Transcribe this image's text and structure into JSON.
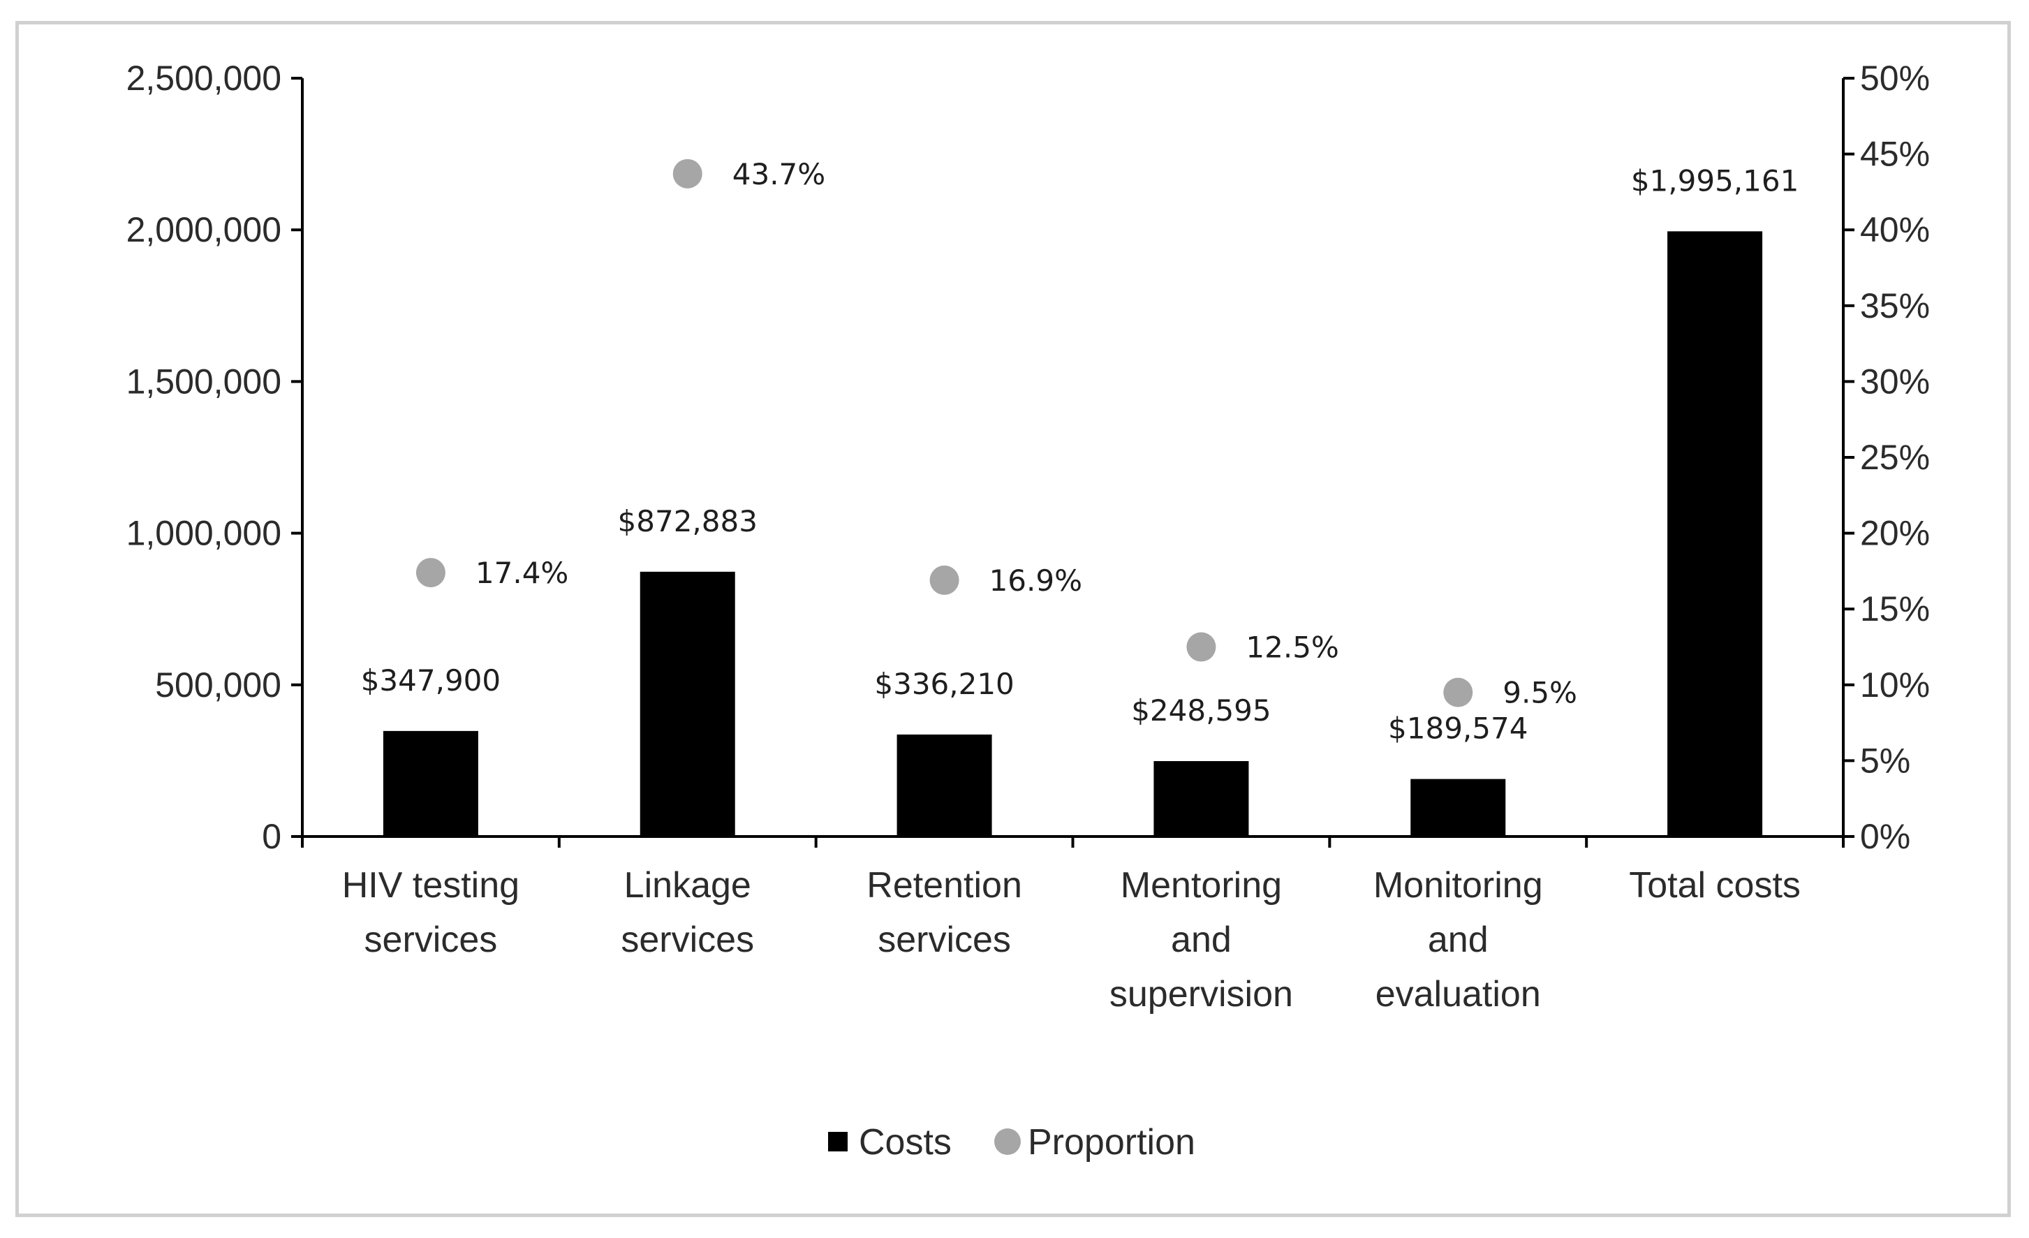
{
  "chart_data": {
    "type": "bar",
    "title": "",
    "categories": [
      [
        "HIV testing",
        "services"
      ],
      [
        "Linkage",
        "services"
      ],
      [
        "Retention",
        "services"
      ],
      [
        "Mentoring",
        "and",
        "supervision"
      ],
      [
        "Monitoring",
        "and",
        "evaluation"
      ],
      [
        "Total costs"
      ]
    ],
    "series": [
      {
        "name": "Costs",
        "type": "bar",
        "axis": "left",
        "color": "#000000",
        "values": [
          347900,
          872883,
          336210,
          248595,
          189574,
          1995161
        ],
        "labels": [
          "$347,900",
          "$872,883",
          "$336,210",
          "$248,595",
          "$189,574",
          "$1,995,161"
        ]
      },
      {
        "name": "Proportion",
        "type": "scatter",
        "axis": "right",
        "color": "#a6a6a6",
        "values": [
          17.4,
          43.7,
          16.9,
          12.5,
          9.5,
          null
        ],
        "labels": [
          "17.4%",
          "43.7%",
          "16.9%",
          "12.5%",
          "9.5%",
          ""
        ]
      }
    ],
    "y_left": {
      "range": [
        0,
        2500000
      ],
      "ticks": [
        0,
        500000,
        1000000,
        1500000,
        2000000,
        2500000
      ],
      "tick_labels": [
        "0",
        "500,000",
        "1,000,000",
        "1,500,000",
        "2,000,000",
        "2,500,000"
      ]
    },
    "y_right": {
      "range": [
        0,
        50
      ],
      "ticks": [
        0,
        5,
        10,
        15,
        20,
        25,
        30,
        35,
        40,
        45,
        50
      ],
      "tick_labels": [
        "0%",
        "5%",
        "10%",
        "15%",
        "20%",
        "25%",
        "30%",
        "35%",
        "40%",
        "45%",
        "50%"
      ]
    },
    "legend": {
      "position": "bottom",
      "entries": [
        "Costs",
        "Proportion"
      ]
    },
    "grid": false,
    "xlabel": "",
    "ylabel": ""
  }
}
